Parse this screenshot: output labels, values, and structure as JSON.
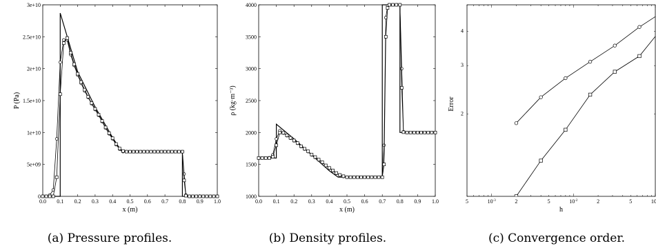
{
  "captions": {
    "a": "(a) Pressure profiles.",
    "b": "(b) Density profiles.",
    "c": "(c) Convergence order."
  },
  "chart_data": [
    {
      "type": "line",
      "xlabel": "x (m)",
      "ylabel": "P   (Pa)",
      "xlim": [
        0.0,
        1.0
      ],
      "ylim": [
        0,
        30000000000.0
      ],
      "xticks": [
        "0.0",
        "0.1",
        "0.2",
        "0.3",
        "0.4",
        "0.5",
        "0.6",
        "0.7",
        "0.8",
        "0.9",
        "1.0"
      ],
      "yticks": [
        "0",
        "5e+09",
        "1e+10",
        "1.5e+10",
        "2e+10",
        "2.5e+10",
        "3e+10"
      ],
      "series": [
        {
          "style": "solid",
          "x": [
            0.0,
            0.1,
            0.1,
            0.2,
            0.3,
            0.4,
            0.45,
            0.5,
            0.6,
            0.7,
            0.8,
            0.8,
            0.9,
            1.0
          ],
          "y": [
            0,
            0,
            28700000000.0,
            19500000000.0,
            14000000000.0,
            9200000000.0,
            7100000000.0,
            7000000000.0,
            7000000000.0,
            7000000000.0,
            7000000000.0,
            0,
            0,
            0
          ]
        },
        {
          "style": "circle-markers",
          "x": [
            0.0,
            0.02,
            0.04,
            0.06,
            0.08,
            0.1,
            0.12,
            0.14,
            0.16,
            0.18,
            0.2,
            0.22,
            0.24,
            0.26,
            0.28,
            0.3,
            0.32,
            0.34,
            0.36,
            0.38,
            0.4,
            0.42,
            0.44,
            0.46,
            0.48,
            0.5,
            0.52,
            0.54,
            0.56,
            0.58,
            0.6,
            0.62,
            0.64,
            0.66,
            0.68,
            0.7,
            0.72,
            0.74,
            0.76,
            0.78,
            0.8,
            0.81,
            0.82,
            0.84,
            0.86,
            0.88,
            0.9,
            0.92,
            0.94,
            0.96,
            0.98,
            1.0
          ],
          "y": [
            0,
            0,
            200000000.0,
            1000000000.0,
            9000000000.0,
            21000000000.0,
            24500000000.0,
            24500000000.0,
            22200000000.0,
            20500000000.0,
            19000000000.0,
            17700000000.0,
            16500000000.0,
            15500000000.0,
            14500000000.0,
            13600000000.0,
            12700000000.0,
            11700000000.0,
            10700000000.0,
            9800000000.0,
            9000000000.0,
            8100000000.0,
            7400000000.0,
            7000000000.0,
            7000000000.0,
            7000000000.0,
            7000000000.0,
            7000000000.0,
            7000000000.0,
            7000000000.0,
            7000000000.0,
            7000000000.0,
            7000000000.0,
            7000000000.0,
            7000000000.0,
            7000000000.0,
            7000000000.0,
            7000000000.0,
            7000000000.0,
            7000000000.0,
            7000000000.0,
            3500000000.0,
            200000000.0,
            0,
            0,
            0,
            0,
            0,
            0,
            0,
            0,
            0
          ]
        },
        {
          "style": "square-markers",
          "x": [
            0.0,
            0.02,
            0.04,
            0.06,
            0.08,
            0.1,
            0.12,
            0.14,
            0.16,
            0.18,
            0.2,
            0.22,
            0.24,
            0.26,
            0.28,
            0.3,
            0.32,
            0.34,
            0.36,
            0.38,
            0.4,
            0.42,
            0.44,
            0.46,
            0.48,
            0.5,
            0.52,
            0.54,
            0.56,
            0.58,
            0.6,
            0.62,
            0.64,
            0.66,
            0.68,
            0.7,
            0.72,
            0.74,
            0.76,
            0.78,
            0.8,
            0.81,
            0.82,
            0.84,
            0.86,
            0.88,
            0.9,
            0.92,
            0.94,
            0.96,
            0.98,
            1.0
          ],
          "y": [
            0,
            0,
            0,
            0,
            3000000000.0,
            16000000000.0,
            24000000000.0,
            24800000000.0,
            22500000000.0,
            20700000000.0,
            19200000000.0,
            17900000000.0,
            16700000000.0,
            15600000000.0,
            14600000000.0,
            13700000000.0,
            12800000000.0,
            11800000000.0,
            10800000000.0,
            9900000000.0,
            9100000000.0,
            8200000000.0,
            7500000000.0,
            7100000000.0,
            7000000000.0,
            7000000000.0,
            7000000000.0,
            7000000000.0,
            7000000000.0,
            7000000000.0,
            7000000000.0,
            7000000000.0,
            7000000000.0,
            7000000000.0,
            7000000000.0,
            7000000000.0,
            7000000000.0,
            7000000000.0,
            7000000000.0,
            7000000000.0,
            7000000000.0,
            2500000000.0,
            100000000.0,
            0,
            0,
            0,
            0,
            0,
            0,
            0,
            0,
            0
          ]
        }
      ]
    },
    {
      "type": "line",
      "xlabel": "x (m)",
      "ylabel": "ρ  (kg·m⁻³)",
      "xlim": [
        0.0,
        1.0
      ],
      "ylim": [
        1000,
        4000
      ],
      "xticks": [
        "0.0",
        "0.1",
        "0.2",
        "0.3",
        "0.4",
        "0.5",
        "0.6",
        "0.7",
        "0.8",
        "0.9",
        "1.0"
      ],
      "yticks": [
        "1000",
        "1500",
        "2000",
        "2500",
        "3000",
        "3500",
        "4000"
      ],
      "series": [
        {
          "style": "solid",
          "x": [
            0.0,
            0.1,
            0.1,
            0.2,
            0.3,
            0.4,
            0.45,
            0.5,
            0.6,
            0.7,
            0.7,
            0.8,
            0.8,
            0.9,
            1.0
          ],
          "y": [
            1600,
            1600,
            2130,
            1900,
            1650,
            1400,
            1300,
            1300,
            1300,
            1300,
            4000,
            4000,
            2000,
            2000,
            2000
          ]
        },
        {
          "style": "circle-markers",
          "x": [
            0.0,
            0.02,
            0.04,
            0.06,
            0.08,
            0.1,
            0.12,
            0.14,
            0.16,
            0.18,
            0.2,
            0.22,
            0.24,
            0.26,
            0.28,
            0.3,
            0.32,
            0.34,
            0.36,
            0.38,
            0.4,
            0.42,
            0.44,
            0.46,
            0.48,
            0.5,
            0.52,
            0.54,
            0.56,
            0.58,
            0.6,
            0.62,
            0.64,
            0.66,
            0.68,
            0.7,
            0.71,
            0.72,
            0.73,
            0.74,
            0.76,
            0.78,
            0.8,
            0.81,
            0.82,
            0.84,
            0.86,
            0.88,
            0.9,
            0.92,
            0.94,
            0.96,
            0.98,
            1.0
          ],
          "y": [
            1600,
            1600,
            1600,
            1605,
            1650,
            1900,
            2030,
            1990,
            1950,
            1910,
            1870,
            1830,
            1780,
            1740,
            1700,
            1650,
            1610,
            1570,
            1530,
            1480,
            1440,
            1400,
            1360,
            1330,
            1310,
            1300,
            1300,
            1300,
            1300,
            1300,
            1300,
            1300,
            1300,
            1300,
            1300,
            1300,
            1800,
            3800,
            3980,
            4000,
            4000,
            4000,
            4000,
            3000,
            2010,
            2000,
            2000,
            2000,
            2000,
            2000,
            2000,
            2000,
            2000,
            2000
          ]
        },
        {
          "style": "square-markers",
          "x": [
            0.0,
            0.02,
            0.04,
            0.06,
            0.08,
            0.1,
            0.12,
            0.14,
            0.16,
            0.18,
            0.2,
            0.22,
            0.24,
            0.26,
            0.28,
            0.3,
            0.32,
            0.34,
            0.36,
            0.38,
            0.4,
            0.42,
            0.44,
            0.46,
            0.48,
            0.5,
            0.52,
            0.54,
            0.56,
            0.58,
            0.6,
            0.62,
            0.64,
            0.66,
            0.68,
            0.7,
            0.71,
            0.72,
            0.73,
            0.74,
            0.76,
            0.78,
            0.8,
            0.81,
            0.82,
            0.84,
            0.86,
            0.88,
            0.9,
            0.92,
            0.94,
            0.96,
            0.98,
            1.0
          ],
          "y": [
            1600,
            1600,
            1600,
            1600,
            1620,
            1800,
            2000,
            1995,
            1955,
            1915,
            1875,
            1835,
            1785,
            1745,
            1705,
            1655,
            1615,
            1575,
            1535,
            1485,
            1445,
            1405,
            1365,
            1335,
            1315,
            1300,
            1300,
            1300,
            1300,
            1300,
            1300,
            1300,
            1300,
            1300,
            1300,
            1300,
            1500,
            3500,
            3950,
            4000,
            4000,
            4000,
            4000,
            2700,
            2005,
            2000,
            2000,
            2000,
            2000,
            2000,
            2000,
            2000,
            2000,
            2000
          ]
        }
      ]
    },
    {
      "type": "line",
      "scale": "log-log",
      "xlabel": "h",
      "ylabel": "Error",
      "xlim": [
        0.0005,
        0.1
      ],
      "ylim": [
        1,
        5
      ],
      "xticks": [
        {
          "value": 0.0005,
          "label": "5"
        },
        {
          "value": 0.001,
          "label": "10^-3"
        },
        {
          "value": 0.002,
          "label": "2"
        },
        {
          "value": 0.005,
          "label": "5"
        },
        {
          "value": 0.01,
          "label": "10^-2"
        },
        {
          "value": 0.02,
          "label": "2"
        },
        {
          "value": 0.05,
          "label": "5"
        },
        {
          "value": 0.1,
          "label": "10^-1"
        }
      ],
      "yticks": [
        {
          "value": 2,
          "label": "2"
        },
        {
          "value": 3,
          "label": "3"
        },
        {
          "value": 4,
          "label": "4"
        }
      ],
      "series": [
        {
          "marker": "circle",
          "x": [
            0.002,
            0.004,
            0.008,
            0.016,
            0.032,
            0.064,
            0.128
          ],
          "y": [
            1.85,
            2.3,
            2.7,
            3.1,
            3.55,
            4.15,
            4.75
          ]
        },
        {
          "marker": "square",
          "x": [
            0.002,
            0.004,
            0.008,
            0.016,
            0.032,
            0.064,
            0.128
          ],
          "y": [
            1.0,
            1.35,
            1.75,
            2.35,
            2.85,
            3.25,
            4.2
          ]
        }
      ]
    }
  ]
}
